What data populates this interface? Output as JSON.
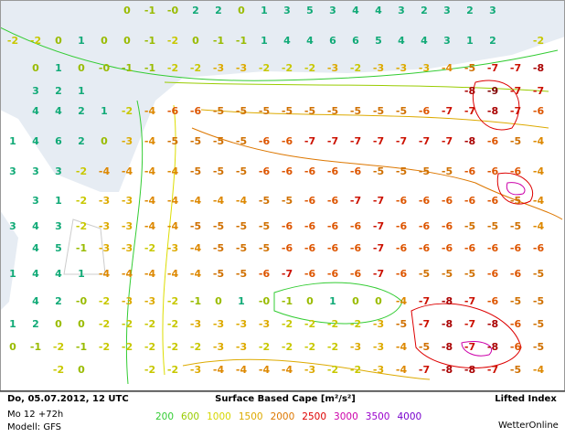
{
  "footer": {
    "date": "Do, 05.07.2012, 12 UTC",
    "run": "Mo 12 +72h",
    "model": "Modell: GFS",
    "legend_title": "Surface Based Cape [m²/s²]",
    "field": "Lifted Index",
    "brand": "WetterOnline",
    "legend": [
      {
        "label": "200",
        "color": "#33cc33"
      },
      {
        "label": "600",
        "color": "#99cc00"
      },
      {
        "label": "1000",
        "color": "#d6d600"
      },
      {
        "label": "1500",
        "color": "#ddaa00"
      },
      {
        "label": "2000",
        "color": "#dd7700"
      },
      {
        "label": "2500",
        "color": "#dd0000"
      },
      {
        "label": "3000",
        "color": "#cc00aa"
      },
      {
        "label": "3500",
        "color": "#9900cc"
      },
      {
        "label": "4000",
        "color": "#7700cc"
      }
    ]
  },
  "label_colors": {
    "positive": "#11aa77",
    "0": "#99bb00",
    "-0": "#99bb00",
    "-1": "#99bb00",
    "-2": "#c8c800",
    "-3": "#ddaa00",
    "-4": "#dd8800",
    "-5": "#d07000",
    "-6": "#dd5500",
    "-7": "#cc1100",
    "-8": "#aa0000",
    "-9": "#800000"
  },
  "labels": [
    [
      null,
      null,
      null,
      null,
      null,
      "0",
      "-1",
      "-0",
      "2",
      "2",
      "0",
      "1",
      "3",
      "5",
      "3",
      "4",
      "4",
      "3",
      "2",
      "3",
      "2",
      "3",
      null,
      null
    ],
    [
      "-2",
      "-2",
      "0",
      "1",
      "0",
      "0",
      "-1",
      "-2",
      "0",
      "-1",
      "-1",
      "1",
      "4",
      "4",
      "6",
      "6",
      "5",
      "4",
      "4",
      "3",
      "1",
      "2",
      null,
      "-2"
    ],
    [
      null,
      "0",
      "1",
      "0",
      "-0",
      "-1",
      "-1",
      "-2",
      "-2",
      "-3",
      "-3",
      "-2",
      "-2",
      "-2",
      "-3",
      "-2",
      "-3",
      "-3",
      "-3",
      "-4",
      "-5",
      "-7",
      "-7",
      "-8"
    ],
    [
      null,
      "3",
      "2",
      "1",
      null,
      null,
      null,
      null,
      null,
      null,
      null,
      null,
      null,
      null,
      null,
      null,
      null,
      null,
      null,
      null,
      "-8",
      "-9",
      "-7",
      "-7"
    ],
    [
      null,
      "4",
      "4",
      "2",
      "1",
      "-2",
      "-4",
      "-6",
      "-6",
      "-5",
      "-5",
      "-5",
      "-5",
      "-5",
      "-5",
      "-5",
      "-5",
      "-5",
      "-6",
      "-7",
      "-7",
      "-8",
      "-7",
      "-6"
    ],
    [
      "1",
      "4",
      "6",
      "2",
      "0",
      "-3",
      "-4",
      "-5",
      "-5",
      "-5",
      "-5",
      "-6",
      "-6",
      "-7",
      "-7",
      "-7",
      "-7",
      "-7",
      "-7",
      "-7",
      "-8",
      "-6",
      "-5",
      "-4"
    ],
    [
      "3",
      "3",
      "3",
      "-2",
      "-4",
      "-4",
      "-4",
      "-4",
      "-5",
      "-5",
      "-5",
      "-6",
      "-6",
      "-6",
      "-6",
      "-6",
      "-5",
      "-5",
      "-5",
      "-5",
      "-6",
      "-6",
      "-6",
      "-4"
    ],
    [
      null,
      "3",
      "1",
      "-2",
      "-3",
      "-3",
      "-4",
      "-4",
      "-4",
      "-4",
      "-4",
      "-5",
      "-5",
      "-6",
      "-6",
      "-7",
      "-7",
      "-6",
      "-6",
      "-6",
      "-6",
      "-6",
      "-5",
      "-4"
    ],
    [
      "3",
      "4",
      "3",
      "-2",
      "-3",
      "-3",
      "-4",
      "-4",
      "-5",
      "-5",
      "-5",
      "-5",
      "-6",
      "-6",
      "-6",
      "-6",
      "-7",
      "-6",
      "-6",
      "-6",
      "-5",
      "-5",
      "-5",
      "-4"
    ],
    [
      null,
      "4",
      "5",
      "-1",
      "-3",
      "-3",
      "-2",
      "-3",
      "-4",
      "-5",
      "-5",
      "-5",
      "-6",
      "-6",
      "-6",
      "-6",
      "-7",
      "-6",
      "-6",
      "-6",
      "-6",
      "-6",
      "-6",
      "-6"
    ],
    [
      "1",
      "4",
      "4",
      "1",
      "-4",
      "-4",
      "-4",
      "-4",
      "-4",
      "-5",
      "-5",
      "-6",
      "-7",
      "-6",
      "-6",
      "-6",
      "-7",
      "-6",
      "-5",
      "-5",
      "-5",
      "-6",
      "-6",
      "-5"
    ],
    [
      null,
      "4",
      "2",
      "-0",
      "-2",
      "-3",
      "-3",
      "-2",
      "-1",
      "0",
      "1",
      "-0",
      "-1",
      "0",
      "1",
      "0",
      "0",
      "-4",
      "-7",
      "-8",
      "-7",
      "-6",
      "-5",
      "-5"
    ],
    [
      "1",
      "2",
      "0",
      "0",
      "-2",
      "-2",
      "-2",
      "-2",
      "-3",
      "-3",
      "-3",
      "-3",
      "-2",
      "-2",
      "-2",
      "-2",
      "-3",
      "-5",
      "-7",
      "-8",
      "-7",
      "-8",
      "-6",
      "-5"
    ],
    [
      "0",
      "-1",
      "-2",
      "-1",
      "-2",
      "-2",
      "-2",
      "-2",
      "-2",
      "-3",
      "-3",
      "-2",
      "-2",
      "-2",
      "-2",
      "-3",
      "-3",
      "-4",
      "-5",
      "-8",
      "-7",
      "-8",
      "-6",
      "-5"
    ],
    [
      null,
      null,
      "-2",
      "0",
      null,
      null,
      "-2",
      "-2",
      "-3",
      "-4",
      "-4",
      "-4",
      "-4",
      "-3",
      "-2",
      "-2",
      "-3",
      "-4",
      "-7",
      "-8",
      "-8",
      "-7",
      "-5",
      "-4"
    ]
  ]
}
